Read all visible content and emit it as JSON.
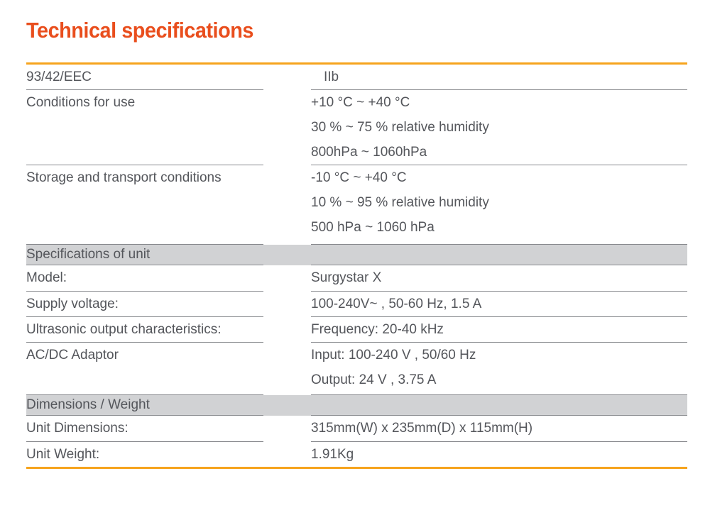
{
  "page": {
    "title": "Technical specifications",
    "colors": {
      "title-color": "#E94E1D",
      "rule-color": "#F6A41D",
      "band-bg": "#D1D2D4",
      "text-color": "#54565B",
      "line-color": "#87898D"
    }
  },
  "table": {
    "rows": [
      {
        "type": "data",
        "label": "93/42/EEC",
        "values": [
          "IIb"
        ]
      },
      {
        "type": "data",
        "label": "Conditions for use",
        "values": [
          "+10 °C ~ +40 °C",
          "30 % ~ 75 % relative humidity",
          "800hPa ~ 1060hPa"
        ]
      },
      {
        "type": "data",
        "label": "Storage and transport conditions",
        "values": [
          "-10 °C ~ +40 °C",
          "10 % ~ 95 % relative humidity",
          "500 hPa ~ 1060 hPa"
        ]
      },
      {
        "type": "section",
        "label": "Specifications of unit"
      },
      {
        "type": "data",
        "label": "Model:",
        "values": [
          "Surgystar X"
        ]
      },
      {
        "type": "data",
        "label": "Supply voltage:",
        "values": [
          "100-240V~ , 50-60 Hz, 1.5 A"
        ]
      },
      {
        "type": "data",
        "label": "Ultrasonic output characteristics:",
        "values": [
          "Frequency: 20-40 kHz"
        ]
      },
      {
        "type": "data",
        "label": "AC/DC Adaptor",
        "values": [
          "Input: 100-240 V , 50/60 Hz",
          "Output: 24 V , 3.75 A"
        ]
      },
      {
        "type": "section",
        "label": "Dimensions / Weight"
      },
      {
        "type": "data",
        "label": "Unit Dimensions:",
        "values": [
          "315mm(W) x 235mm(D) x 115mm(H)"
        ]
      },
      {
        "type": "data",
        "label": "Unit Weight:",
        "values": [
          "1.91Kg"
        ]
      }
    ]
  }
}
